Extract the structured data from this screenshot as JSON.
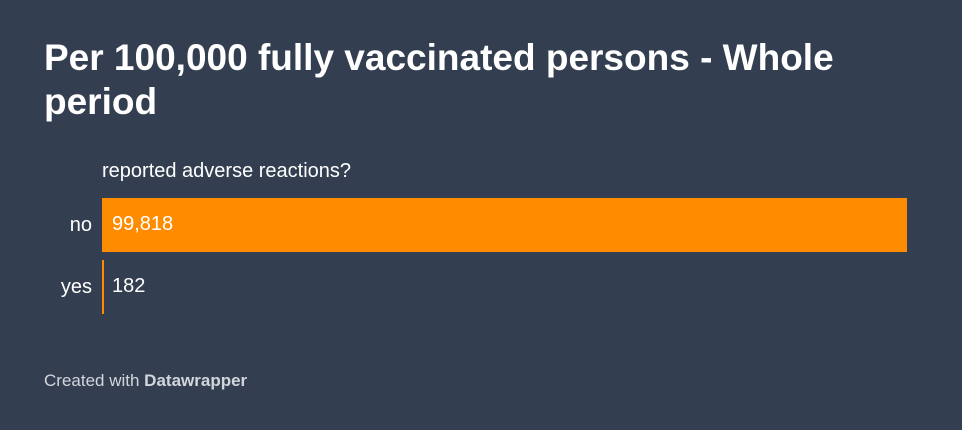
{
  "chart_data": {
    "type": "bar",
    "orientation": "horizontal",
    "title": "Per 100,000 fully vaccinated persons - Whole period",
    "column_header": "reported adverse reactions?",
    "categories": [
      "no",
      "yes"
    ],
    "values": [
      99818,
      182
    ],
    "value_labels": [
      "99,818",
      "182"
    ],
    "xlim": [
      0,
      100000
    ],
    "bar_color": "#ff8c00",
    "background_color": "#333f50",
    "grid": false
  },
  "footer": {
    "prefix": "Created with",
    "brand": "Datawrapper"
  }
}
